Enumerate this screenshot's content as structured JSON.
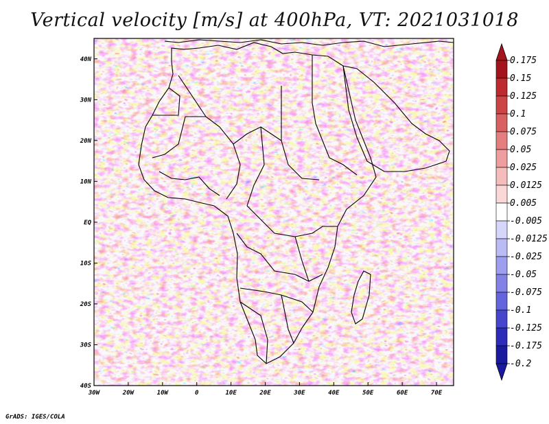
{
  "title": "Vertical velocity [m/s] at 400hPa, VT: 2021031018",
  "footer": "GrADS: IGES/COLA",
  "map": {
    "region": "Africa",
    "lat_labels": [
      "40N",
      "30N",
      "20N",
      "10N",
      "EQ",
      "10S",
      "20S",
      "30S",
      "40S"
    ],
    "lat_values": [
      40,
      30,
      20,
      10,
      0,
      -10,
      -20,
      -30,
      -40
    ],
    "lon_labels": [
      "30W",
      "20W",
      "10W",
      "0",
      "10E",
      "20E",
      "30E",
      "40E",
      "50E",
      "60E",
      "70E"
    ],
    "lon_values": [
      -30,
      -20,
      -10,
      0,
      10,
      20,
      30,
      40,
      50,
      60,
      70
    ],
    "lon_range": [
      -30,
      75
    ],
    "lat_range": [
      -40,
      45
    ]
  },
  "colorbar": {
    "levels": [
      "0.175",
      "0.15",
      "0.125",
      "0.1",
      "0.075",
      "0.05",
      "0.025",
      "0.0125",
      "0.005",
      "-0.005",
      "-0.0125",
      "-0.025",
      "-0.05",
      "-0.075",
      "-0.1",
      "-0.125",
      "-0.175",
      "-0.2"
    ],
    "colors": [
      "#a3141c",
      "#bd2a2f",
      "#cd4444",
      "#d96060",
      "#e57e7e",
      "#ee9e9e",
      "#f5bcbc",
      "#fad8d8",
      "#ffffff",
      "#d6d6fa",
      "#babaf4",
      "#9e9eee",
      "#8282e6",
      "#6464dc",
      "#4646cc",
      "#2c2cb8",
      "#1a1aa0"
    ],
    "top_color": "#a3141c",
    "bottom_color": "#1a1aa0"
  }
}
